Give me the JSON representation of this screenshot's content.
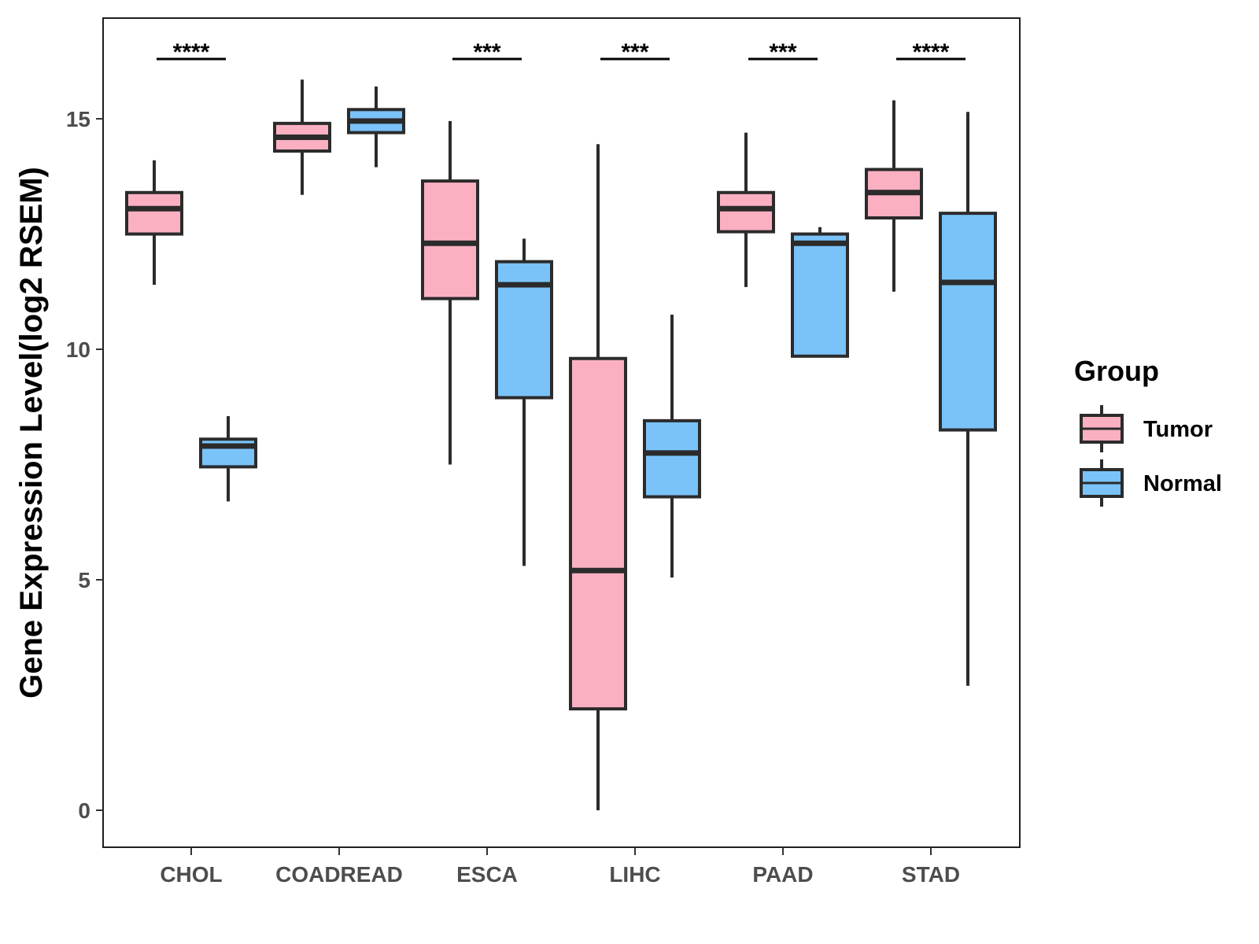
{
  "chart_data": {
    "type": "boxplot",
    "title": "",
    "xlabel": "",
    "ylabel": "Gene Expression Level(log2 RSEM)",
    "ylim": [
      -0.8,
      17.2
    ],
    "yticks": [
      0,
      5,
      10,
      15
    ],
    "categories": [
      "CHOL",
      "COADREAD",
      "ESCA",
      "LIHC",
      "PAAD",
      "STAD"
    ],
    "legend": {
      "title": "Group",
      "position": "right"
    },
    "series": [
      {
        "name": "Tumor",
        "color": "#FBB0C2",
        "boxes": [
          {
            "min": 11.4,
            "q1": 12.5,
            "median": 13.05,
            "q3": 13.4,
            "max": 14.1
          },
          {
            "min": 13.35,
            "q1": 14.3,
            "median": 14.6,
            "q3": 14.9,
            "max": 15.85
          },
          {
            "min": 7.5,
            "q1": 11.1,
            "median": 12.3,
            "q3": 13.65,
            "max": 14.95
          },
          {
            "min": 0.0,
            "q1": 2.2,
            "median": 5.2,
            "q3": 9.8,
            "max": 14.45
          },
          {
            "min": 11.35,
            "q1": 12.55,
            "median": 13.05,
            "q3": 13.4,
            "max": 14.7
          },
          {
            "min": 11.25,
            "q1": 12.85,
            "median": 13.4,
            "q3": 13.9,
            "max": 15.4
          }
        ]
      },
      {
        "name": "Normal",
        "color": "#7AC3F9",
        "boxes": [
          {
            "min": 6.7,
            "q1": 7.45,
            "median": 7.9,
            "q3": 8.05,
            "max": 8.55
          },
          {
            "min": 13.95,
            "q1": 14.7,
            "median": 14.95,
            "q3": 15.2,
            "max": 15.7
          },
          {
            "min": 5.3,
            "q1": 8.95,
            "median": 11.4,
            "q3": 11.9,
            "max": 12.4
          },
          {
            "min": 5.05,
            "q1": 6.8,
            "median": 7.75,
            "q3": 8.45,
            "max": 10.75
          },
          {
            "min": 9.85,
            "q1": 9.85,
            "median": 12.3,
            "q3": 12.5,
            "max": 12.65
          },
          {
            "min": 2.7,
            "q1": 8.25,
            "median": 11.45,
            "q3": 12.95,
            "max": 15.15
          }
        ]
      }
    ],
    "significance": [
      {
        "category": "CHOL",
        "label": "****"
      },
      {
        "category": "COADREAD",
        "label": ""
      },
      {
        "category": "ESCA",
        "label": "***"
      },
      {
        "category": "LIHC",
        "label": "***"
      },
      {
        "category": "PAAD",
        "label": "***"
      },
      {
        "category": "STAD",
        "label": "****"
      }
    ]
  }
}
